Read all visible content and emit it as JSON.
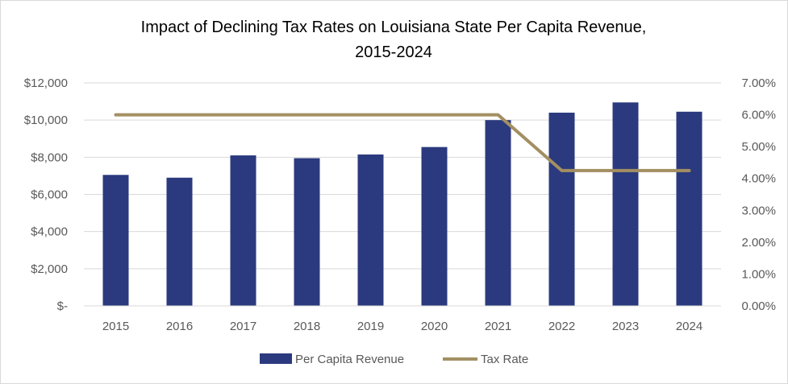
{
  "chart_data": {
    "type": "bar",
    "title_line1": "Impact of Declining Tax Rates on Louisiana State Per Capita Revenue,",
    "title_line2": "2015-2024",
    "categories": [
      "2015",
      "2016",
      "2017",
      "2018",
      "2019",
      "2020",
      "2021",
      "2022",
      "2023",
      "2024"
    ],
    "series": [
      {
        "name": "Per Capita Revenue",
        "type": "bar",
        "axis": "left",
        "color": "#2b3a7e",
        "values": [
          7050,
          6900,
          8100,
          7950,
          8150,
          8550,
          10000,
          10400,
          10950,
          10450
        ]
      },
      {
        "name": "Tax Rate",
        "type": "line",
        "axis": "right",
        "color": "#a38f62",
        "values": [
          0.06,
          0.06,
          0.06,
          0.06,
          0.06,
          0.06,
          0.06,
          0.0425,
          0.0425,
          0.0425
        ]
      }
    ],
    "y_left": {
      "lim": [
        0,
        12000
      ],
      "ticks": [
        0,
        2000,
        4000,
        6000,
        8000,
        10000,
        12000
      ],
      "tick_labels": [
        "$-",
        "$2,000",
        "$4,000",
        "$6,000",
        "$8,000",
        "$10,000",
        "$12,000"
      ]
    },
    "y_right": {
      "lim": [
        0,
        0.07
      ],
      "ticks": [
        0,
        0.01,
        0.02,
        0.03,
        0.04,
        0.05,
        0.06,
        0.07
      ],
      "tick_labels": [
        "0.00%",
        "1.00%",
        "2.00%",
        "3.00%",
        "4.00%",
        "5.00%",
        "6.00%",
        "7.00%"
      ]
    },
    "grid": true,
    "legend": "bottom"
  }
}
